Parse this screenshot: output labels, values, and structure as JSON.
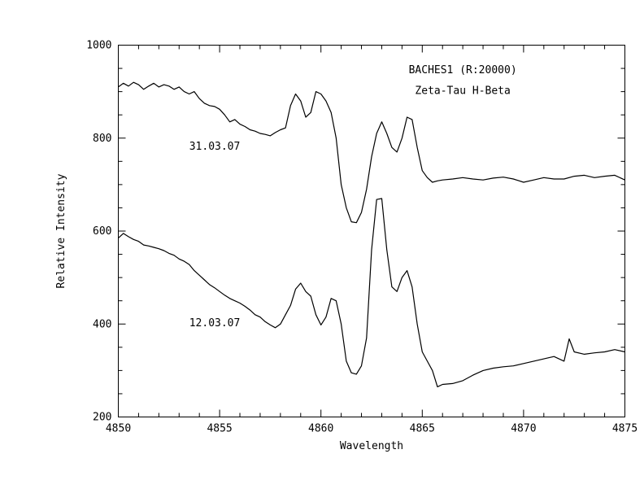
{
  "chart_data": {
    "type": "line",
    "xlabel": "Wavelength",
    "ylabel": "Relative Intensity",
    "xlim": [
      4850,
      4875
    ],
    "ylim": [
      200,
      1000
    ],
    "xticks_major": [
      4850,
      4855,
      4860,
      4865,
      4870,
      4875
    ],
    "yticks_major": [
      200,
      400,
      600,
      800,
      1000
    ],
    "xtick_labels": [
      "4850",
      "4855",
      "4860",
      "4865",
      "4870",
      "4875"
    ],
    "ytick_labels": [
      "200",
      "400",
      "600",
      "800",
      "1000"
    ],
    "grid": false,
    "legend": null,
    "annotations": [
      {
        "id": "label-baches",
        "text": "BACHES1 (R:20000)",
        "x": 4867,
        "y": 940
      },
      {
        "id": "label-target",
        "text": "Zeta-Tau H-Beta",
        "x": 4867,
        "y": 895
      },
      {
        "id": "label-date-1",
        "text": "31.03.07",
        "x": 4853.5,
        "y": 775
      },
      {
        "id": "label-date-2",
        "text": "12.03.07",
        "x": 4853.5,
        "y": 395
      }
    ],
    "series": [
      {
        "x": [
          4850.0,
          4850.25,
          4850.5,
          4850.75,
          4851.0,
          4851.25,
          4851.5,
          4851.75,
          4852.0,
          4852.25,
          4852.5,
          4852.75,
          4853.0,
          4853.25,
          4853.5,
          4853.75,
          4854.0,
          4854.25,
          4854.5,
          4854.75,
          4855.0,
          4855.25,
          4855.5,
          4855.75,
          4856.0,
          4856.25,
          4856.5,
          4856.75,
          4857.0,
          4857.25,
          4857.5,
          4857.75,
          4858.0,
          4858.25,
          4858.5,
          4858.75,
          4859.0,
          4859.25,
          4859.5,
          4859.75,
          4860.0,
          4860.25,
          4860.5,
          4860.75,
          4861.0,
          4861.25,
          4861.5,
          4861.75,
          4862.0,
          4862.25,
          4862.5,
          4862.75,
          4863.0,
          4863.25,
          4863.5,
          4863.75,
          4864.0,
          4864.25,
          4864.5,
          4864.75,
          4865.0,
          4865.25,
          4865.5,
          4865.75,
          4866.0,
          4866.5,
          4867.0,
          4867.5,
          4868.0,
          4868.5,
          4869.0,
          4869.5,
          4870.0,
          4870.5,
          4871.0,
          4871.5,
          4872.0,
          4872.5,
          4873.0,
          4873.5,
          4874.0,
          4874.5,
          4875.0
        ],
        "values": [
          910,
          918,
          912,
          920,
          915,
          905,
          912,
          918,
          910,
          915,
          912,
          905,
          910,
          900,
          895,
          900,
          885,
          875,
          870,
          868,
          862,
          850,
          835,
          840,
          830,
          825,
          818,
          815,
          810,
          808,
          805,
          812,
          818,
          822,
          870,
          895,
          880,
          845,
          855,
          900,
          895,
          880,
          855,
          800,
          700,
          650,
          620,
          618,
          640,
          690,
          760,
          810,
          835,
          810,
          780,
          770,
          800,
          845,
          840,
          780,
          730,
          715,
          705,
          708,
          710,
          712,
          715,
          712,
          710,
          714,
          716,
          712,
          705,
          710,
          715,
          712,
          712,
          718,
          720,
          715,
          718,
          720,
          710
        ]
      },
      {
        "x": [
          4850.0,
          4850.25,
          4850.5,
          4850.75,
          4851.0,
          4851.25,
          4851.5,
          4851.75,
          4852.0,
          4852.25,
          4852.5,
          4852.75,
          4853.0,
          4853.25,
          4853.5,
          4853.75,
          4854.0,
          4854.25,
          4854.5,
          4854.75,
          4855.0,
          4855.25,
          4855.5,
          4855.75,
          4856.0,
          4856.25,
          4856.5,
          4856.75,
          4857.0,
          4857.25,
          4857.5,
          4857.75,
          4858.0,
          4858.25,
          4858.5,
          4858.75,
          4859.0,
          4859.25,
          4859.5,
          4859.75,
          4860.0,
          4860.25,
          4860.5,
          4860.75,
          4861.0,
          4861.25,
          4861.5,
          4861.75,
          4862.0,
          4862.25,
          4862.5,
          4862.75,
          4863.0,
          4863.25,
          4863.5,
          4863.75,
          4864.0,
          4864.25,
          4864.5,
          4864.75,
          4865.0,
          4865.25,
          4865.5,
          4865.75,
          4866.0,
          4866.5,
          4867.0,
          4867.5,
          4868.0,
          4868.5,
          4869.0,
          4869.5,
          4870.0,
          4870.5,
          4871.0,
          4871.5,
          4872.0,
          4872.25,
          4872.5,
          4873.0,
          4873.5,
          4874.0,
          4874.5,
          4875.0
        ],
        "values": [
          585,
          595,
          588,
          582,
          578,
          570,
          568,
          565,
          562,
          558,
          552,
          548,
          540,
          535,
          528,
          515,
          505,
          495,
          485,
          478,
          470,
          462,
          455,
          450,
          445,
          438,
          430,
          420,
          415,
          405,
          398,
          392,
          400,
          420,
          440,
          475,
          488,
          470,
          460,
          420,
          398,
          415,
          455,
          450,
          400,
          320,
          295,
          292,
          310,
          370,
          560,
          668,
          670,
          560,
          480,
          470,
          500,
          515,
          480,
          400,
          340,
          320,
          300,
          265,
          270,
          272,
          278,
          290,
          300,
          305,
          308,
          310,
          315,
          320,
          325,
          330,
          320,
          368,
          340,
          335,
          338,
          340,
          345,
          340
        ]
      }
    ]
  }
}
